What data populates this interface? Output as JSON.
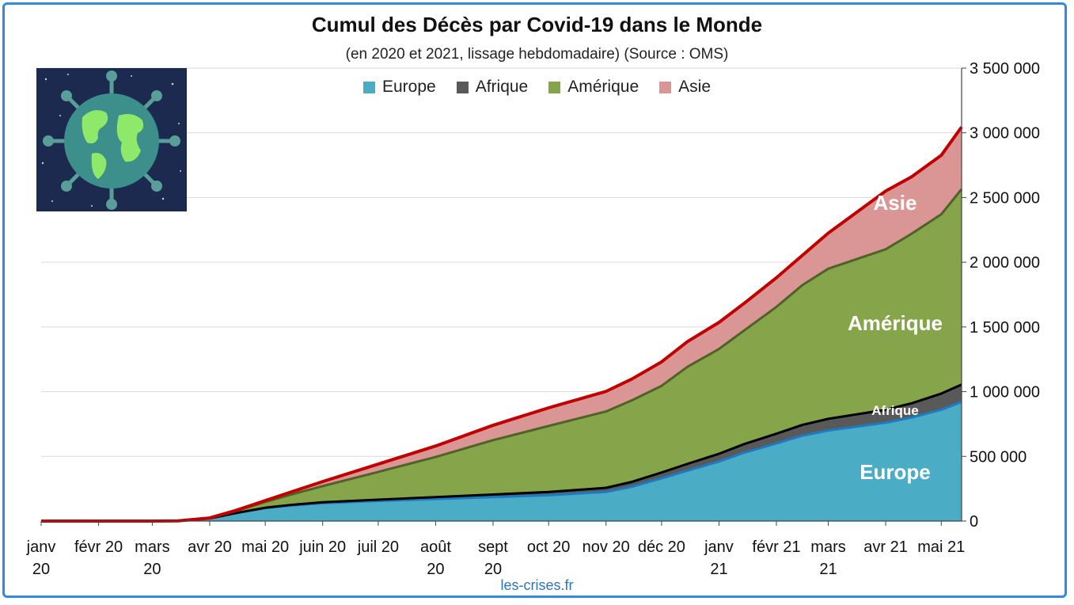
{
  "chart_data": {
    "type": "area",
    "stacked": true,
    "title": "Cumul des Décès par Covid-19 dans le Monde",
    "subtitle": "(en 2020 et 2021, lissage hebdomadaire) (Source : OMS)",
    "source_label": "les-crises.fr",
    "x": [
      "2020-01-01",
      "2020-02-01",
      "2020-03-01",
      "2020-03-15",
      "2020-04-01",
      "2020-04-15",
      "2020-05-01",
      "2020-05-15",
      "2020-06-01",
      "2020-07-01",
      "2020-08-01",
      "2020-09-01",
      "2020-10-01",
      "2020-11-01",
      "2020-11-15",
      "2020-12-01",
      "2020-12-15",
      "2021-01-01",
      "2021-01-15",
      "2021-02-01",
      "2021-02-15",
      "2021-03-01",
      "2021-04-01",
      "2021-04-15",
      "2021-05-01",
      "2021-05-12"
    ],
    "x_tick_labels": [
      "janv\n20",
      "févr 20",
      "mars\n20",
      "avr 20",
      "mai 20",
      "juin 20",
      "juil 20",
      "août\n20",
      "sept\n20",
      "oct 20",
      "nov 20",
      "déc 20",
      "janv\n21",
      "févr 21",
      "mars\n21",
      "avr 21",
      "mai 21"
    ],
    "series": [
      {
        "name": "Europe",
        "color": "#4BACC6",
        "line_color": "#1F7BC1",
        "values": [
          0,
          0,
          0,
          1000,
          20000,
          60000,
          100000,
          120000,
          138000,
          155000,
          170000,
          185000,
          200000,
          225000,
          265000,
          330000,
          390000,
          460000,
          530000,
          600000,
          660000,
          700000,
          760000,
          800000,
          860000,
          920000
        ]
      },
      {
        "name": "Afrique",
        "color": "#595959",
        "line_color": "#000000",
        "values": [
          0,
          0,
          0,
          0,
          500,
          1500,
          3000,
          5000,
          7000,
          10000,
          15000,
          20000,
          25000,
          32000,
          38000,
          45000,
          52000,
          60000,
          67000,
          75000,
          83000,
          90000,
          100000,
          110000,
          125000,
          135000
        ]
      },
      {
        "name": "Amérique",
        "color": "#86A44A",
        "line_color": "#4F6228",
        "values": [
          0,
          0,
          0,
          0,
          1500,
          15000,
          45000,
          80000,
          125000,
          215000,
          310000,
          420000,
          510000,
          590000,
          630000,
          670000,
          750000,
          810000,
          880000,
          980000,
          1080000,
          1160000,
          1240000,
          1310000,
          1385000,
          1510000
        ]
      },
      {
        "name": "Asie",
        "color": "#DA9694",
        "line_color": "#C00000",
        "values": [
          0,
          0,
          0,
          500,
          2000,
          5000,
          10000,
          20000,
          35000,
          60000,
          85000,
          115000,
          140000,
          155000,
          165000,
          185000,
          195000,
          205000,
          210000,
          225000,
          230000,
          275000,
          450000,
          440000,
          456000,
          480000
        ]
      }
    ],
    "annotations": [
      {
        "text": "Asie",
        "series": "Asie"
      },
      {
        "text": "Amérique",
        "series": "Amérique"
      },
      {
        "text": "Afrique",
        "series": "Afrique"
      },
      {
        "text": "Europe",
        "series": "Europe"
      }
    ],
    "y_axis_position": "right",
    "ylim": [
      0,
      3500000
    ],
    "yticks": [
      0,
      500000,
      1000000,
      1500000,
      2000000,
      2500000,
      3000000,
      3500000
    ],
    "ytick_labels": [
      "0",
      "500 000",
      "1 000 000",
      "1 500 000",
      "2 000 000",
      "2 500 000",
      "3 000 000",
      "3 500 000"
    ],
    "grid": true,
    "legend": {
      "placement": "top-center",
      "entries": [
        "Europe",
        "Afrique",
        "Amérique",
        "Asie"
      ]
    },
    "logo": "covid-earth-globe-icon"
  }
}
